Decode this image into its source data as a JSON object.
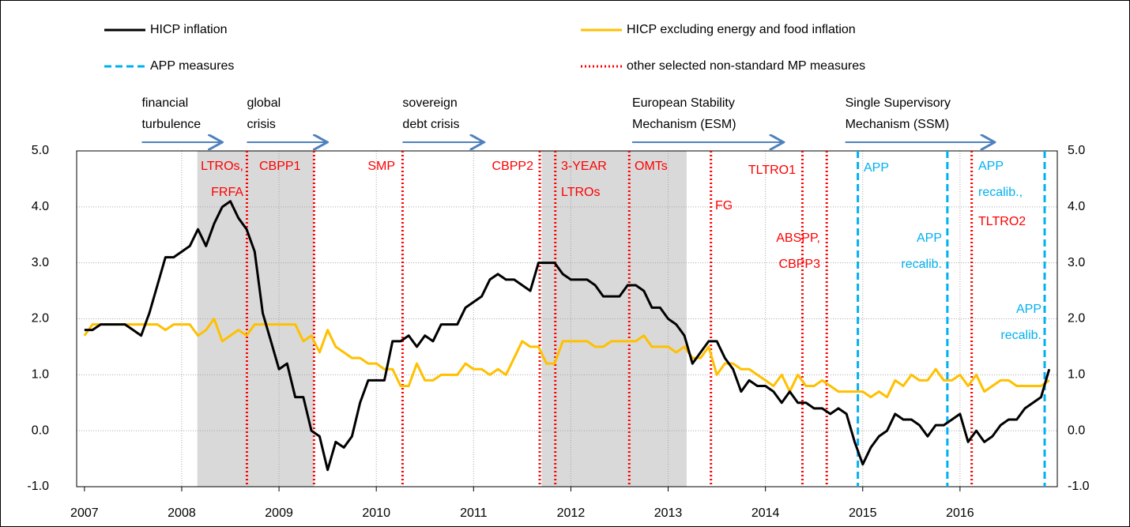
{
  "chart_data": {
    "type": "line",
    "xlim": [
      2006.92,
      2017
    ],
    "xticks": [
      2007,
      2008,
      2009,
      2010,
      2011,
      2012,
      2013,
      2014,
      2015,
      2016
    ],
    "ylim": [
      -1,
      5
    ],
    "yticks": [
      {
        "value": -1,
        "label": "-1.0"
      },
      {
        "value": 0,
        "label": "0.0"
      },
      {
        "value": 1,
        "label": "1.0"
      },
      {
        "value": 2,
        "label": "2.0"
      },
      {
        "value": 3,
        "label": "3.0"
      },
      {
        "value": 4,
        "label": "4.0"
      },
      {
        "value": 5,
        "label": "5.0"
      }
    ],
    "grid": true,
    "x": [
      2007,
      2007.083,
      2007.167,
      2007.25,
      2007.333,
      2007.417,
      2007.5,
      2007.583,
      2007.667,
      2007.75,
      2007.833,
      2007.917,
      2008,
      2008.083,
      2008.167,
      2008.25,
      2008.333,
      2008.417,
      2008.5,
      2008.583,
      2008.667,
      2008.75,
      2008.833,
      2008.917,
      2009,
      2009.083,
      2009.167,
      2009.25,
      2009.333,
      2009.417,
      2009.5,
      2009.583,
      2009.667,
      2009.75,
      2009.833,
      2009.917,
      2010,
      2010.083,
      2010.167,
      2010.25,
      2010.333,
      2010.417,
      2010.5,
      2010.583,
      2010.667,
      2010.75,
      2010.833,
      2010.917,
      2011,
      2011.083,
      2011.167,
      2011.25,
      2011.333,
      2011.417,
      2011.5,
      2011.583,
      2011.667,
      2011.75,
      2011.833,
      2011.917,
      2012,
      2012.083,
      2012.167,
      2012.25,
      2012.333,
      2012.417,
      2012.5,
      2012.583,
      2012.667,
      2012.75,
      2012.833,
      2012.917,
      2013,
      2013.083,
      2013.167,
      2013.25,
      2013.333,
      2013.417,
      2013.5,
      2013.583,
      2013.667,
      2013.75,
      2013.833,
      2013.917,
      2014,
      2014.083,
      2014.167,
      2014.25,
      2014.333,
      2014.417,
      2014.5,
      2014.583,
      2014.667,
      2014.75,
      2014.833,
      2014.917,
      2015,
      2015.083,
      2015.167,
      2015.25,
      2015.333,
      2015.417,
      2015.5,
      2015.583,
      2015.667,
      2015.75,
      2015.833,
      2015.917,
      2016,
      2016.083,
      2016.167,
      2016.25,
      2016.333,
      2016.417,
      2016.5,
      2016.583,
      2016.667,
      2016.75,
      2016.833,
      2016.917
    ],
    "series": [
      {
        "name": "HICP inflation",
        "color": "#000000",
        "values": [
          1.8,
          1.8,
          1.9,
          1.9,
          1.9,
          1.9,
          1.8,
          1.7,
          2.1,
          2.6,
          3.1,
          3.1,
          3.2,
          3.3,
          3.6,
          3.3,
          3.7,
          4.0,
          4.1,
          3.8,
          3.6,
          3.2,
          2.1,
          1.6,
          1.1,
          1.2,
          0.6,
          0.6,
          0.0,
          -0.1,
          -0.7,
          -0.2,
          -0.3,
          -0.1,
          0.5,
          0.9,
          0.9,
          0.9,
          1.6,
          1.6,
          1.7,
          1.5,
          1.7,
          1.6,
          1.9,
          1.9,
          1.9,
          2.2,
          2.3,
          2.4,
          2.7,
          2.8,
          2.7,
          2.7,
          2.6,
          2.5,
          3.0,
          3.0,
          3.0,
          2.8,
          2.7,
          2.7,
          2.7,
          2.6,
          2.4,
          2.4,
          2.4,
          2.6,
          2.6,
          2.5,
          2.2,
          2.2,
          2.0,
          1.9,
          1.7,
          1.2,
          1.4,
          1.6,
          1.6,
          1.3,
          1.1,
          0.7,
          0.9,
          0.8,
          0.8,
          0.7,
          0.5,
          0.7,
          0.5,
          0.5,
          0.4,
          0.4,
          0.3,
          0.4,
          0.3,
          -0.2,
          -0.6,
          -0.3,
          -0.1,
          0.0,
          0.3,
          0.2,
          0.2,
          0.1,
          -0.1,
          0.1,
          0.1,
          0.2,
          0.3,
          -0.2,
          0.0,
          -0.2,
          -0.1,
          0.1,
          0.2,
          0.2,
          0.4,
          0.5,
          0.6,
          1.1
        ]
      },
      {
        "name": "HICP excluding energy and food inflation",
        "color": "#ffc000",
        "values": [
          1.7,
          1.9,
          1.9,
          1.9,
          1.9,
          1.9,
          1.9,
          1.9,
          1.9,
          1.9,
          1.8,
          1.9,
          1.9,
          1.9,
          1.7,
          1.8,
          2.0,
          1.6,
          1.7,
          1.8,
          1.7,
          1.9,
          1.9,
          1.9,
          1.9,
          1.9,
          1.9,
          1.6,
          1.7,
          1.4,
          1.8,
          1.5,
          1.4,
          1.3,
          1.3,
          1.2,
          1.2,
          1.1,
          1.1,
          0.8,
          0.8,
          1.2,
          0.9,
          0.9,
          1.0,
          1.0,
          1.0,
          1.2,
          1.1,
          1.1,
          1.0,
          1.1,
          1.0,
          1.3,
          1.6,
          1.5,
          1.5,
          1.2,
          1.2,
          1.6,
          1.6,
          1.6,
          1.6,
          1.5,
          1.5,
          1.6,
          1.6,
          1.6,
          1.6,
          1.7,
          1.5,
          1.5,
          1.5,
          1.4,
          1.5,
          1.3,
          1.3,
          1.5,
          1.0,
          1.2,
          1.2,
          1.1,
          1.1,
          1.0,
          0.9,
          0.8,
          1.0,
          0.7,
          1.0,
          0.8,
          0.8,
          0.9,
          0.8,
          0.7,
          0.7,
          0.7,
          0.7,
          0.6,
          0.7,
          0.6,
          0.9,
          0.8,
          1.0,
          0.9,
          0.9,
          1.1,
          0.9,
          0.9,
          1.0,
          0.8,
          1.0,
          0.7,
          0.8,
          0.9,
          0.9,
          0.8,
          0.8,
          0.8,
          0.8,
          0.9
        ]
      }
    ],
    "markers": [
      {
        "name": "APP measures",
        "color": "#00b0f0",
        "style": "dashed",
        "x": [
          2014.95,
          2015.87,
          2016.87
        ]
      },
      {
        "name": "other selected non-standard MP measures",
        "color": "#ff0000",
        "style": "dotted",
        "x": [
          2008.67,
          2009.36,
          2010.27,
          2011.68,
          2011.84,
          2012.6,
          2013.44,
          2014.38,
          2014.63,
          2016.12
        ]
      }
    ],
    "shaded": [
      [
        2008.16,
        2009.36
      ],
      [
        2011.7,
        2013.19
      ]
    ],
    "phases": [
      {
        "lines": [
          "financial",
          "turbulence"
        ],
        "span": [
          2007.59,
          2008.4
        ]
      },
      {
        "lines": [
          "global",
          "crisis"
        ],
        "span": [
          2008.67,
          2009.48
        ]
      },
      {
        "lines": [
          "sovereign",
          "debt crisis"
        ],
        "span": [
          2010.27,
          2011.09
        ]
      },
      {
        "lines": [
          "European Stability",
          "Mechanism (ESM)"
        ],
        "span": [
          2012.63,
          2014.17
        ]
      },
      {
        "lines": [
          "Single Supervisory",
          "Mechanism (SSM)"
        ],
        "span": [
          2014.82,
          2016.34
        ]
      }
    ],
    "annotations": [
      {
        "lines": [
          "LTROs,",
          "FRFA"
        ],
        "color": "#ff0000"
      },
      {
        "lines": [
          "CBPP1"
        ],
        "color": "#ff0000"
      },
      {
        "lines": [
          "SMP"
        ],
        "color": "#ff0000"
      },
      {
        "lines": [
          "CBPP2"
        ],
        "color": "#ff0000"
      },
      {
        "lines": [
          "3-YEAR",
          "LTROs"
        ],
        "color": "#ff0000"
      },
      {
        "lines": [
          "OMTs"
        ],
        "color": "#ff0000"
      },
      {
        "lines": [
          "FG"
        ],
        "color": "#ff0000"
      },
      {
        "lines": [
          "TLTRO1"
        ],
        "color": "#ff0000"
      },
      {
        "lines": [
          "ABSPP,",
          "CBPP3"
        ],
        "color": "#ff0000"
      },
      {
        "lines": [
          "APP"
        ],
        "color": "#00b0f0"
      },
      {
        "lines": [
          "APP",
          "recalib."
        ],
        "color": "#00b0f0"
      },
      {
        "lines": [
          "APP",
          "recalib.,"
        ],
        "color": "#00b0f0"
      },
      {
        "lines": [
          "TLTRO2"
        ],
        "color": "#ff0000"
      },
      {
        "lines": [
          "APP",
          "recalib."
        ],
        "color": "#00b0f0"
      }
    ]
  }
}
